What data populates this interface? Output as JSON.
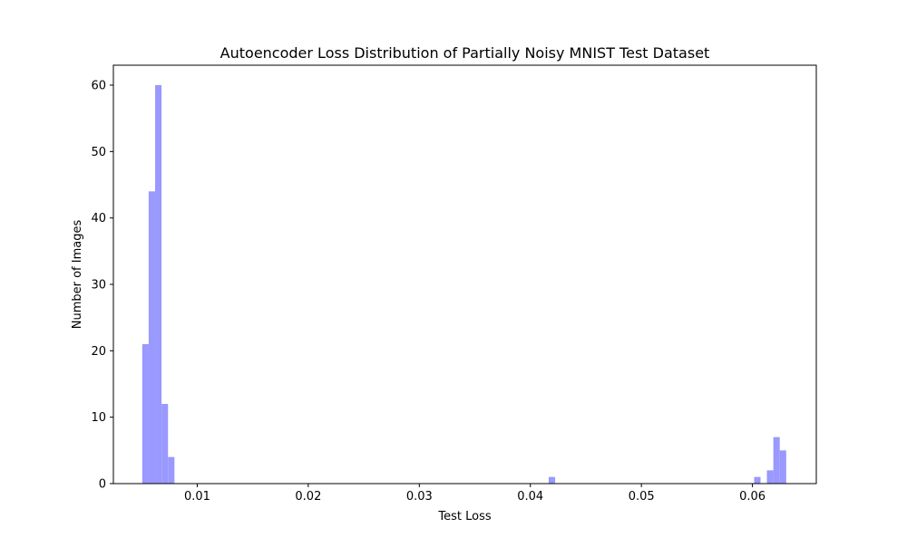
{
  "chart_data": {
    "type": "histogram",
    "title": "Autoencoder Loss Distribution of Partially Noisy MNIST Test Dataset",
    "xlabel": "Test Loss",
    "ylabel": "Number of Images",
    "xlim": [
      0.00245,
      0.06575
    ],
    "ylim": [
      0,
      63
    ],
    "x_ticks": [
      0.01,
      0.02,
      0.03,
      0.04,
      0.05,
      0.06
    ],
    "x_tick_labels": [
      "0.01",
      "0.02",
      "0.03",
      "0.04",
      "0.05",
      "0.06"
    ],
    "y_ticks": [
      0,
      10,
      20,
      30,
      40,
      50,
      60
    ],
    "y_tick_labels": [
      "0",
      "10",
      "20",
      "30",
      "40",
      "50",
      "60"
    ],
    "bin_width": 0.00058,
    "bars": [
      {
        "x": 0.00505,
        "count": 21
      },
      {
        "x": 0.00563,
        "count": 44
      },
      {
        "x": 0.00621,
        "count": 60
      },
      {
        "x": 0.00679,
        "count": 12
      },
      {
        "x": 0.00737,
        "count": 4
      },
      {
        "x": 0.04165,
        "count": 1
      },
      {
        "x": 0.06015,
        "count": 1
      },
      {
        "x": 0.0613,
        "count": 2
      },
      {
        "x": 0.06188,
        "count": 7
      },
      {
        "x": 0.06246,
        "count": 5
      }
    ],
    "bar_color": "#9999ff",
    "grid": false,
    "legend": false
  }
}
